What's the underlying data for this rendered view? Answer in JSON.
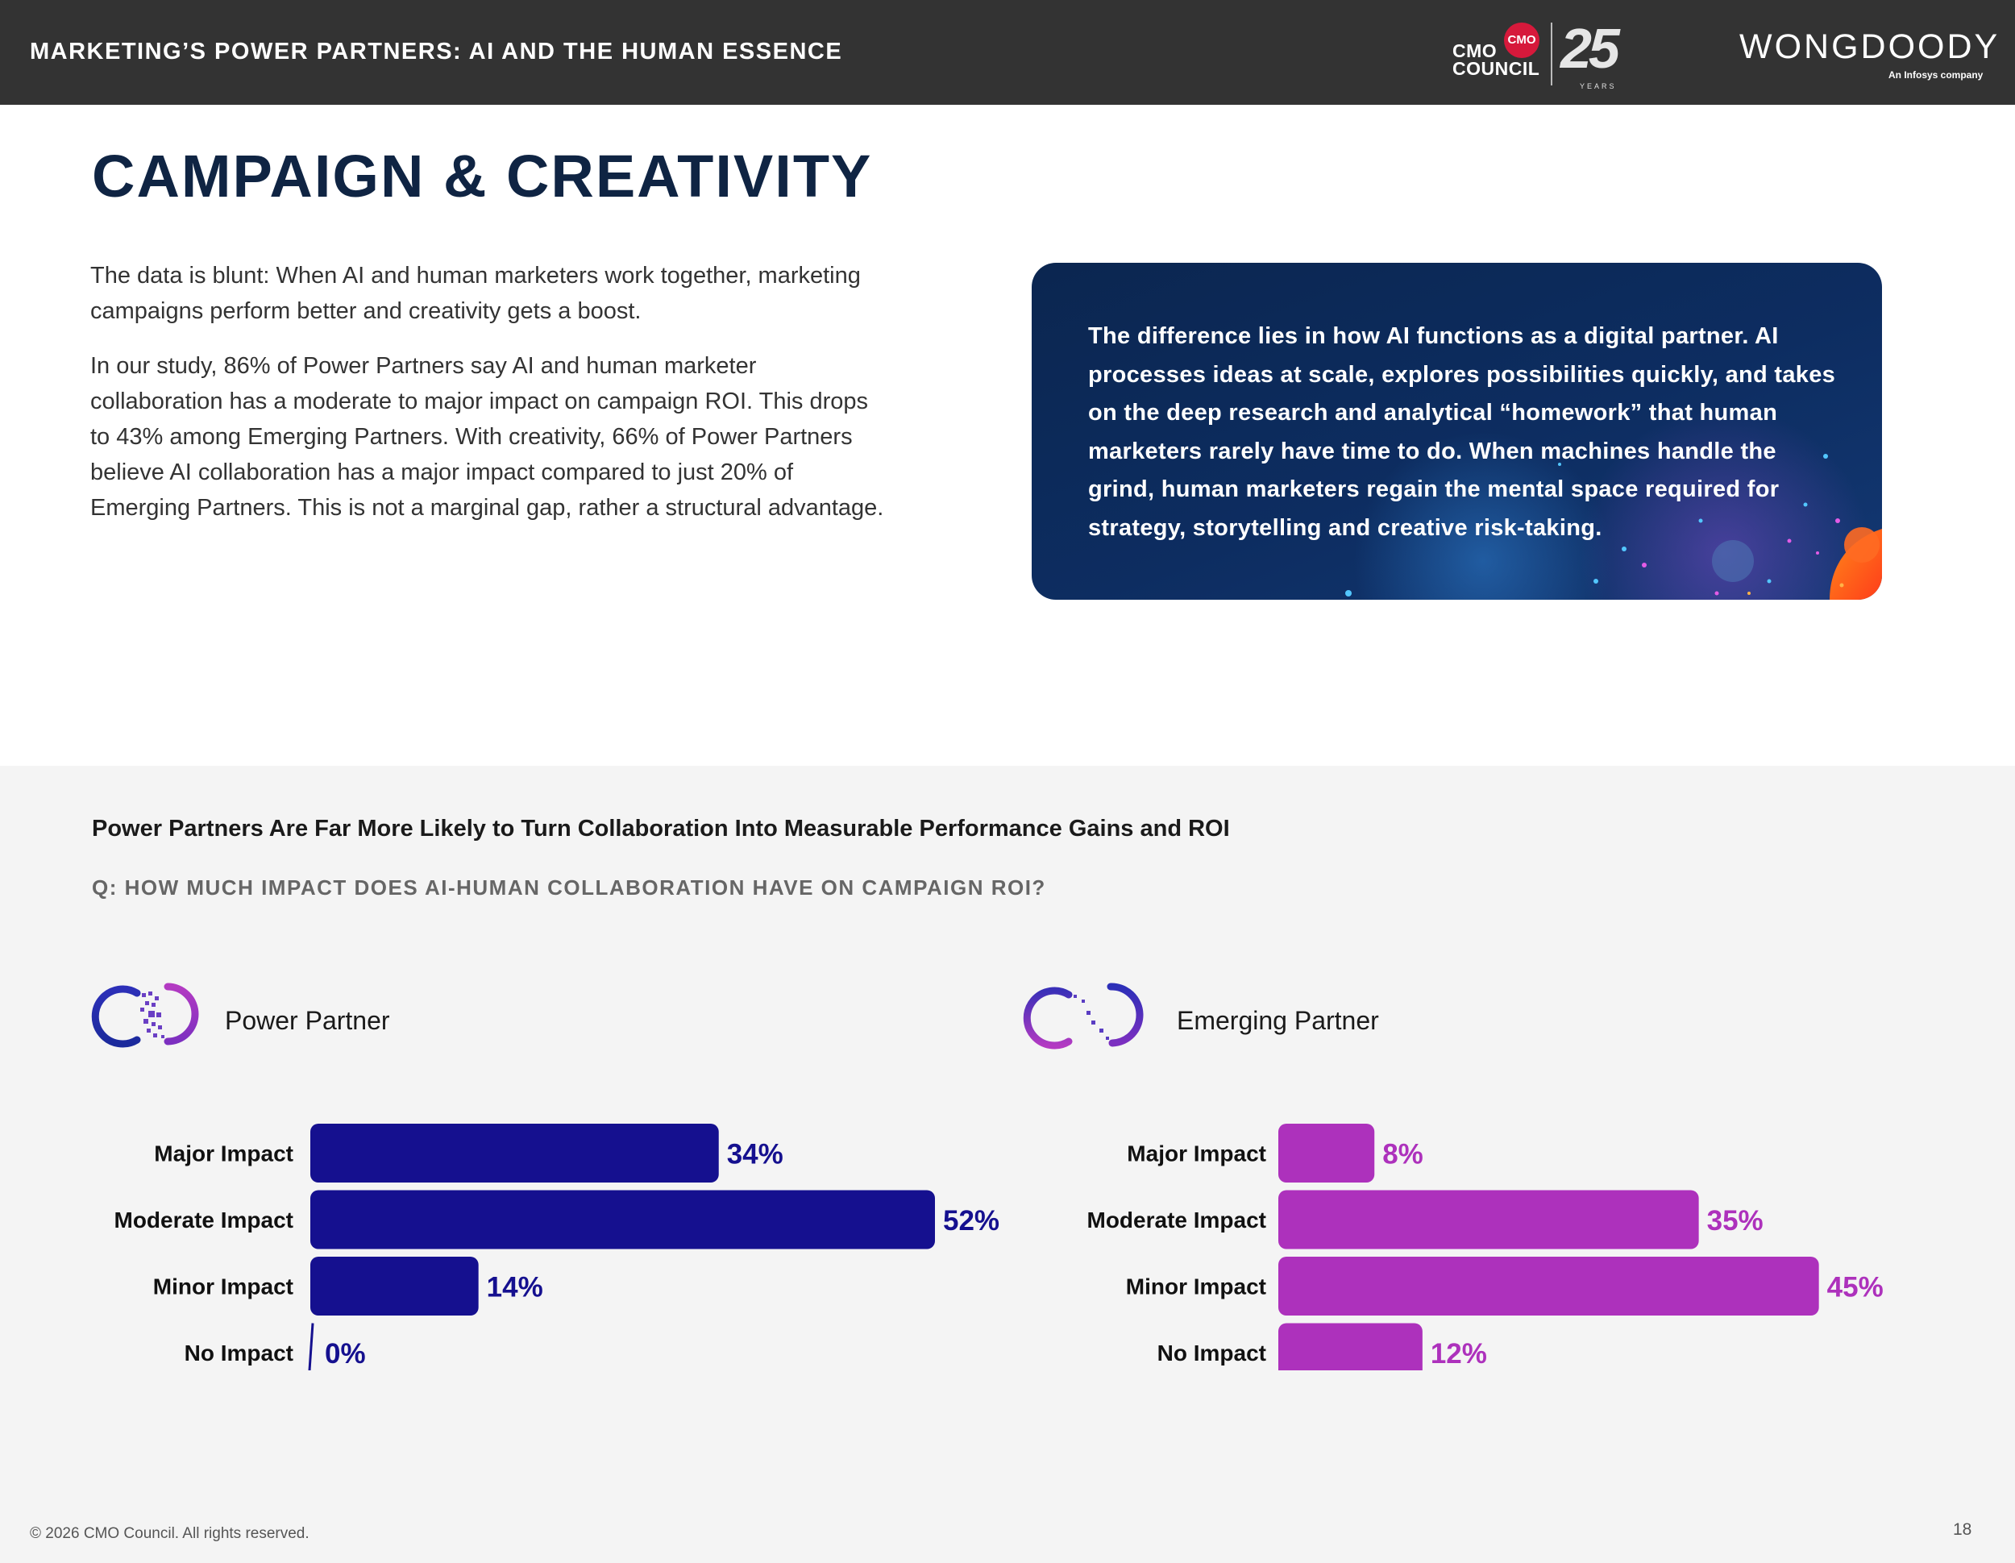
{
  "header": {
    "title": "MARKETING’S POWER PARTNERS: AI AND THE HUMAN ESSENCE",
    "cmo_logo_text_1": "CMO",
    "cmo_logo_text_2": "COUNCIL",
    "cmo_logo_ring": "CMO",
    "cmo_anniversary": "25",
    "cmo_years": "YEARS",
    "partner_logo": "WONGDOODY",
    "partner_sub": "An Infosys company"
  },
  "page_title": "CAMPAIGN & CREATIVITY",
  "intro": {
    "p1": "The data is blunt: When AI and human marketers work together, marketing campaigns perform better and creativity gets a boost.",
    "p2": "In our study, 86% of Power Partners say AI and human marketer collaboration has a moderate to major impact on campaign ROI. This drops to 43% among Emerging Partners. With creativity, 66% of Power Partners believe AI collaboration has a major impact compared to just 20% of Emerging Partners. This is not a marginal gap, rather a structural advantage."
  },
  "callout": {
    "text": "The difference lies in how AI functions as a digital partner. AI processes ideas at scale, explores possibilities quickly, and takes on the deep research and analytical “homework” that human marketers rarely have time to do. When machines handle the grind, human marketers regain the mental space required for strategy, storytelling and creative risk-taking."
  },
  "chart_heading": "Power Partners Are Far More Likely to Turn Collaboration Into Measurable Performance Gains and ROI",
  "chart_question": "Q: HOW MUCH IMPACT DOES AI-HUMAN COLLABORATION HAVE ON CAMPAIGN ROI?",
  "chart_data": [
    {
      "type": "bar",
      "orientation": "horizontal",
      "group_label": "Power Partner",
      "color": "#15108f",
      "categories": [
        "Major Impact",
        "Moderate Impact",
        "Minor Impact",
        "No Impact"
      ],
      "values": [
        34,
        52,
        14,
        0
      ],
      "value_labels": [
        "34%",
        "52%",
        "14%",
        "0%"
      ],
      "unit": "%",
      "xlim": [
        0,
        52
      ]
    },
    {
      "type": "bar",
      "orientation": "horizontal",
      "group_label": "Emerging Partner",
      "color": "#ad31bc",
      "categories": [
        "Major Impact",
        "Moderate Impact",
        "Minor Impact",
        "No Impact"
      ],
      "values": [
        8,
        35,
        45,
        12
      ],
      "value_labels": [
        "8%",
        "35%",
        "45%",
        "12%"
      ],
      "unit": "%",
      "xlim": [
        0,
        52
      ]
    }
  ],
  "footer": {
    "copyright": "© 2026 CMO Council. All rights reserved.",
    "page_number": "18"
  }
}
